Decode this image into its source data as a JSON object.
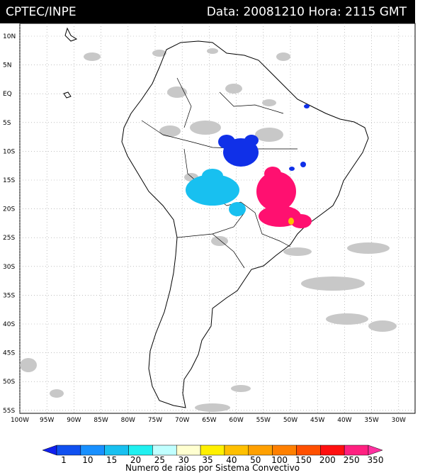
{
  "header": {
    "source": "CPTEC/INPE",
    "datetime": "Data: 20081210 Hora: 2115 GMT"
  },
  "map": {
    "lat_labels": [
      "10N",
      "5N",
      "EQ",
      "5S",
      "10S",
      "15S",
      "20S",
      "25S",
      "30S",
      "35S",
      "40S",
      "45S",
      "50S",
      "55S"
    ],
    "lon_labels": [
      "100W",
      "95W",
      "90W",
      "85W",
      "80W",
      "75W",
      "70W",
      "65W",
      "60W",
      "55W",
      "50W",
      "45W",
      "40W",
      "35W",
      "30W"
    ]
  },
  "colorbar": {
    "labels": [
      "1",
      "10",
      "15",
      "20",
      "25",
      "30",
      "35",
      "40",
      "50",
      "100",
      "150",
      "200",
      "250",
      "350"
    ],
    "colors": [
      "#1020f0",
      "#1050f0",
      "#1890ff",
      "#18c0f0",
      "#20f0f0",
      "#c0ffff",
      "#ffffd0",
      "#fff000",
      "#ffc000",
      "#ffa000",
      "#ff8000",
      "#ff5000",
      "#ff1010",
      "#ff2080",
      "#ff30a0"
    ],
    "title": "Numero de raios por Sistema Convectivo"
  }
}
